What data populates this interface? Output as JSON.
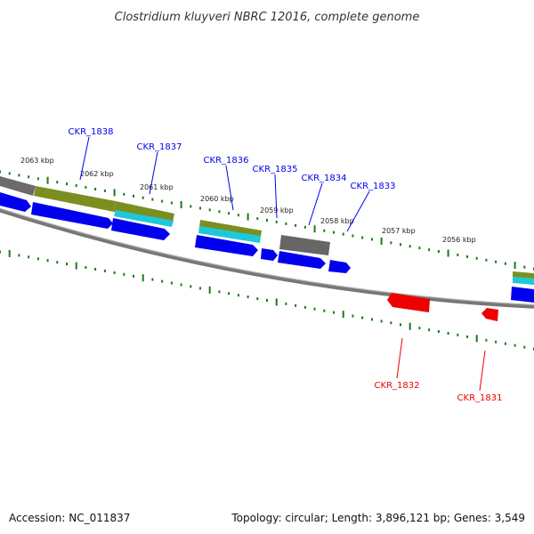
{
  "title": "Clostridium kluyveri NBRC 12016, complete genome",
  "footer": {
    "accession": "Accession: NC_011837",
    "summary": "Topology: circular; Length: 3,896,121 bp; Genes: 3,549"
  },
  "kbp_labels": [
    "2063 kbp",
    "2062 kbp",
    "2061 kbp",
    "2060 kbp",
    "2059 kbp",
    "2058 kbp",
    "2057 kbp",
    "2056 kbp"
  ],
  "gene_labels": {
    "forward": [
      "CKR_1838",
      "CKR_1837",
      "CKR_1836",
      "CKR_1835",
      "CKR_1834",
      "CKR_1833"
    ],
    "reverse": [
      "CKR_1832",
      "CKR_1831"
    ]
  },
  "colors": {
    "forward_gene": "#0000ee",
    "reverse_gene": "#ee0000",
    "cds_olive": "#7a8f20",
    "cds_cyan": "#1ec8d8",
    "gray_feature": "#666666",
    "backbone": "#888888",
    "ruler": "#1a7a1a"
  }
}
